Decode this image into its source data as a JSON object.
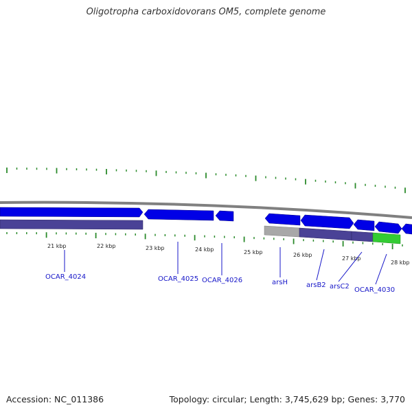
{
  "header": {
    "title": "Oligotropha carboxidovorans OM5, complete genome"
  },
  "footer": {
    "accession": "Accession: NC_011386",
    "summary": "Topology: circular; Length: 3,745,629 bp; Genes: 3,770"
  },
  "ruler": {
    "labels": [
      "21 kbp",
      "22 kbp",
      "23 kbp",
      "24 kbp",
      "25 kbp",
      "26 kbp",
      "27 kbp",
      "28 kbp"
    ]
  },
  "genes": [
    {
      "name": "OCAR_4024"
    },
    {
      "name": "OCAR_4025"
    },
    {
      "name": "OCAR_4026"
    },
    {
      "name": "arsH"
    },
    {
      "name": "arsB2"
    },
    {
      "name": "arsC2"
    },
    {
      "name": "OCAR_4030"
    }
  ],
  "colors": {
    "cds": "#0000e6",
    "feature": "#4a4296",
    "backbone": "#808080",
    "ticks": "#2a8a2a",
    "gray_feature": "#a8a8a8",
    "green_feature": "#33cc33",
    "label": "#1515c8"
  }
}
